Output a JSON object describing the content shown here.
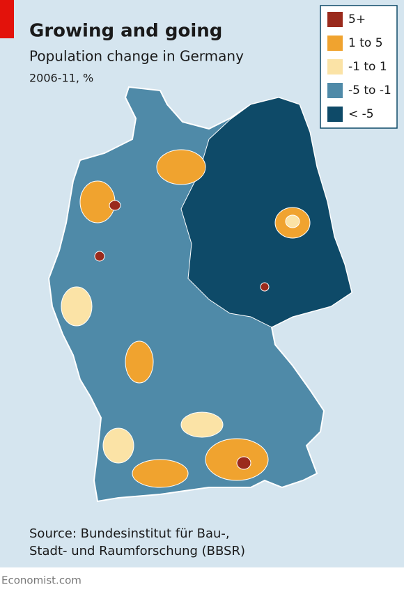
{
  "header": {
    "title": "Growing and going",
    "subtitle": "Population change in Germany",
    "period": "2006-11, %"
  },
  "legend": {
    "items": [
      {
        "label": "5+",
        "color": "#9a2a1c"
      },
      {
        "label": "1 to 5",
        "color": "#f0a32f"
      },
      {
        "label": "-1 to 1",
        "color": "#fbe3a6"
      },
      {
        "label": "-5 to -1",
        "color": "#4f8aa8"
      },
      {
        "label": "< -5",
        "color": "#0e4a68"
      }
    ]
  },
  "source": [
    "Source: Bundesinstitut für Bau-,",
    "Stadt- und Raumforschung (BBSR)"
  ],
  "footer": "Economist.com"
}
